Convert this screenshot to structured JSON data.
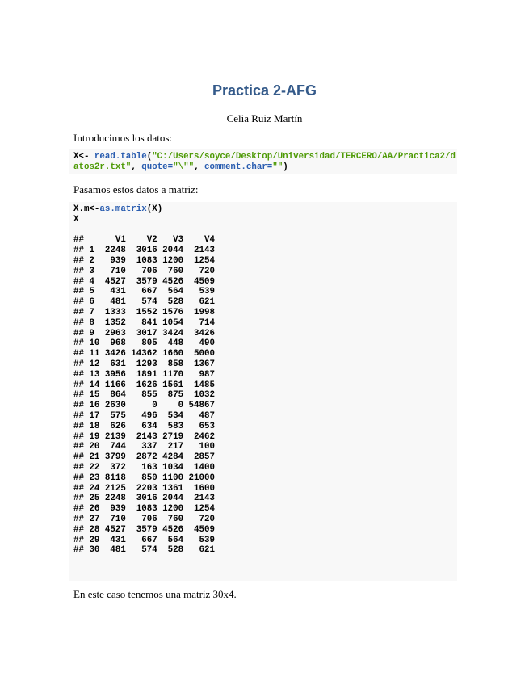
{
  "title": "Practica 2-AFG",
  "author": "Celia Ruiz Martín",
  "para1": "Introducimos los datos:",
  "code1": {
    "var": "X<- ",
    "fn": "read.table",
    "open": "(",
    "path": "\"C:/Users/soyce/Desktop/Universidad/TERCERO/AA/Practica2/d",
    "path2": "atos2r.txt\"",
    "sep1": ", ",
    "arg1": "quote=",
    "arg1val": "\"\\\"\"",
    "sep2": ", ",
    "arg2": "comment.char=",
    "arg2val": "\"\"",
    "close": ")"
  },
  "para2": "Pasamos estos datos a matriz:",
  "code2": {
    "var": "X.m<-",
    "fn": "as.matrix",
    "args": "(X)",
    "line2": "X"
  },
  "output": {
    "prefix": "##",
    "columns": [
      "V1",
      "V2",
      "V3",
      "V4"
    ],
    "rows": [
      [
        1,
        2248,
        3016,
        2044,
        2143
      ],
      [
        2,
        939,
        1083,
        1200,
        1254
      ],
      [
        3,
        710,
        706,
        760,
        720
      ],
      [
        4,
        4527,
        3579,
        4526,
        4509
      ],
      [
        5,
        431,
        667,
        564,
        539
      ],
      [
        6,
        481,
        574,
        528,
        621
      ],
      [
        7,
        1333,
        1552,
        1576,
        1998
      ],
      [
        8,
        1352,
        841,
        1054,
        714
      ],
      [
        9,
        2963,
        3017,
        3424,
        3426
      ],
      [
        10,
        968,
        805,
        448,
        490
      ],
      [
        11,
        3426,
        14362,
        1660,
        5000
      ],
      [
        12,
        631,
        1293,
        858,
        1367
      ],
      [
        13,
        3956,
        1891,
        1170,
        987
      ],
      [
        14,
        1166,
        1626,
        1561,
        1485
      ],
      [
        15,
        864,
        855,
        875,
        1032
      ],
      [
        16,
        2630,
        0,
        0,
        54867
      ],
      [
        17,
        575,
        496,
        534,
        487
      ],
      [
        18,
        626,
        634,
        583,
        653
      ],
      [
        19,
        2139,
        2143,
        2719,
        2462
      ],
      [
        20,
        744,
        337,
        217,
        100
      ],
      [
        21,
        3799,
        2872,
        4284,
        2857
      ],
      [
        22,
        372,
        163,
        1034,
        1400
      ],
      [
        23,
        8118,
        850,
        1100,
        21000
      ],
      [
        24,
        2125,
        2203,
        1361,
        1600
      ],
      [
        25,
        2248,
        3016,
        2044,
        2143
      ],
      [
        26,
        939,
        1083,
        1200,
        1254
      ],
      [
        27,
        710,
        706,
        760,
        720
      ],
      [
        28,
        4527,
        3579,
        4526,
        4509
      ],
      [
        29,
        431,
        667,
        564,
        539
      ],
      [
        30,
        481,
        574,
        528,
        621
      ]
    ]
  },
  "para3": "En este caso tenemos una matriz 30x4."
}
